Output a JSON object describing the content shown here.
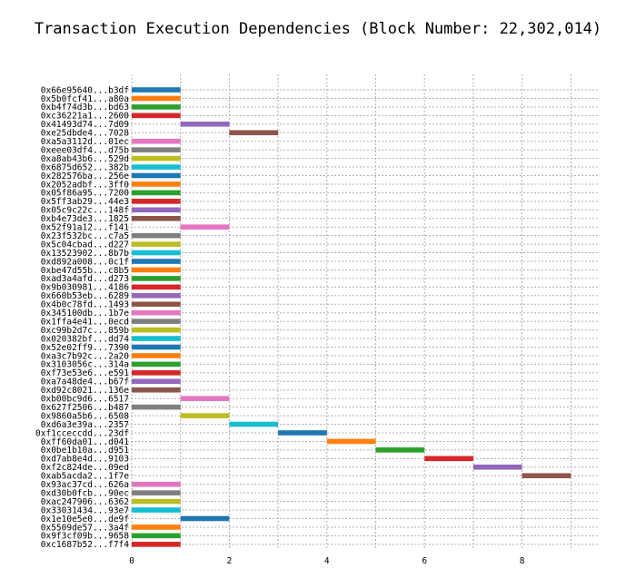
{
  "chart_data": {
    "type": "bar",
    "orientation": "horizontal",
    "title": "Transaction Execution Dependencies (Block Number: 22,302,014)",
    "xlabel": "",
    "ylabel": "",
    "xlim": [
      0,
      9.5
    ],
    "xticks": [
      0,
      2,
      4,
      6,
      8
    ],
    "grid": true,
    "transactions": [
      {
        "label": "0x66e95640...b3df",
        "start": 0,
        "end": 1,
        "color": "#1f77b4"
      },
      {
        "label": "0x5b0fcf41...a80a",
        "start": 0,
        "end": 1,
        "color": "#ff7f0e"
      },
      {
        "label": "0xb4f74d3b...bd63",
        "start": 0,
        "end": 1,
        "color": "#2ca02c"
      },
      {
        "label": "0xc36221a1...2600",
        "start": 0,
        "end": 1,
        "color": "#d62728"
      },
      {
        "label": "0x41493d74...7d09",
        "start": 1,
        "end": 2,
        "color": "#9467bd"
      },
      {
        "label": "0xe25dbde4...7028",
        "start": 2,
        "end": 3,
        "color": "#8c564b"
      },
      {
        "label": "0xa5a3112d...01ec",
        "start": 0,
        "end": 1,
        "color": "#e377c2"
      },
      {
        "label": "0xeee03df4...d75b",
        "start": 0,
        "end": 1,
        "color": "#7f7f7f"
      },
      {
        "label": "0xa8ab43b6...529d",
        "start": 0,
        "end": 1,
        "color": "#bcbd22"
      },
      {
        "label": "0x6875d652...382b",
        "start": 0,
        "end": 1,
        "color": "#17becf"
      },
      {
        "label": "0x282576ba...256e",
        "start": 0,
        "end": 1,
        "color": "#1f77b4"
      },
      {
        "label": "0x2052adbf...3ff0",
        "start": 0,
        "end": 1,
        "color": "#ff7f0e"
      },
      {
        "label": "0x05f86a95...7200",
        "start": 0,
        "end": 1,
        "color": "#2ca02c"
      },
      {
        "label": "0x5ff3ab29...44e3",
        "start": 0,
        "end": 1,
        "color": "#d62728"
      },
      {
        "label": "0x05c9c22c...148f",
        "start": 0,
        "end": 1,
        "color": "#9467bd"
      },
      {
        "label": "0xb4e73de3...1825",
        "start": 0,
        "end": 1,
        "color": "#8c564b"
      },
      {
        "label": "0x52f91a12...f141",
        "start": 1,
        "end": 2,
        "color": "#e377c2"
      },
      {
        "label": "0x23f532bc...c7a5",
        "start": 0,
        "end": 1,
        "color": "#7f7f7f"
      },
      {
        "label": "0x5c04cbad...d227",
        "start": 0,
        "end": 1,
        "color": "#bcbd22"
      },
      {
        "label": "0x13523902...8b7b",
        "start": 0,
        "end": 1,
        "color": "#17becf"
      },
      {
        "label": "0xd892a008...0c1f",
        "start": 0,
        "end": 1,
        "color": "#1f77b4"
      },
      {
        "label": "0xbe47d55b...c8b5",
        "start": 0,
        "end": 1,
        "color": "#ff7f0e"
      },
      {
        "label": "0xad3a4afd...d273",
        "start": 0,
        "end": 1,
        "color": "#2ca02c"
      },
      {
        "label": "0x9b030981...4186",
        "start": 0,
        "end": 1,
        "color": "#d62728"
      },
      {
        "label": "0x660b53eb...6289",
        "start": 0,
        "end": 1,
        "color": "#9467bd"
      },
      {
        "label": "0x4b0c78fd...1493",
        "start": 0,
        "end": 1,
        "color": "#8c564b"
      },
      {
        "label": "0x345100db...1b7e",
        "start": 0,
        "end": 1,
        "color": "#e377c2"
      },
      {
        "label": "0x1ffa4e41...0ecd",
        "start": 0,
        "end": 1,
        "color": "#7f7f7f"
      },
      {
        "label": "0xc99b2d7c...859b",
        "start": 0,
        "end": 1,
        "color": "#bcbd22"
      },
      {
        "label": "0x020382bf...dd74",
        "start": 0,
        "end": 1,
        "color": "#17becf"
      },
      {
        "label": "0x52e02ff9...7390",
        "start": 0,
        "end": 1,
        "color": "#1f77b4"
      },
      {
        "label": "0xa3c7b92c...2a20",
        "start": 0,
        "end": 1,
        "color": "#ff7f0e"
      },
      {
        "label": "0x3103056c...314a",
        "start": 0,
        "end": 1,
        "color": "#2ca02c"
      },
      {
        "label": "0xf73e53e6...e591",
        "start": 0,
        "end": 1,
        "color": "#d62728"
      },
      {
        "label": "0xa7a48de4...b67f",
        "start": 0,
        "end": 1,
        "color": "#9467bd"
      },
      {
        "label": "0xd92c8021...136e",
        "start": 0,
        "end": 1,
        "color": "#8c564b"
      },
      {
        "label": "0xb00bc9d6...6517",
        "start": 1,
        "end": 2,
        "color": "#e377c2"
      },
      {
        "label": "0x627f2506...b487",
        "start": 0,
        "end": 1,
        "color": "#7f7f7f"
      },
      {
        "label": "0x9860a5b6...6508",
        "start": 1,
        "end": 2,
        "color": "#bcbd22"
      },
      {
        "label": "0xd6a3e39a...2357",
        "start": 2,
        "end": 3,
        "color": "#17becf"
      },
      {
        "label": "0xf1cceccdd...23df",
        "start": 3,
        "end": 4,
        "color": "#1f77b4"
      },
      {
        "label": "0xff60da01...d041",
        "start": 4,
        "end": 5,
        "color": "#ff7f0e"
      },
      {
        "label": "0x0be1b10a...d951",
        "start": 5,
        "end": 6,
        "color": "#2ca02c"
      },
      {
        "label": "0xd7ab8e4d...9103",
        "start": 6,
        "end": 7,
        "color": "#d62728"
      },
      {
        "label": "0xf2c824de...09ed",
        "start": 7,
        "end": 8,
        "color": "#9467bd"
      },
      {
        "label": "0xab5acda2...1f7e",
        "start": 8,
        "end": 9,
        "color": "#8c564b"
      },
      {
        "label": "0x93ac37cd...626a",
        "start": 0,
        "end": 1,
        "color": "#e377c2"
      },
      {
        "label": "0xd30b0fcb...90ec",
        "start": 0,
        "end": 1,
        "color": "#7f7f7f"
      },
      {
        "label": "0xac247906...6362",
        "start": 0,
        "end": 1,
        "color": "#bcbd22"
      },
      {
        "label": "0x33031434...93e7",
        "start": 0,
        "end": 1,
        "color": "#17becf"
      },
      {
        "label": "0x1e10e5e0...de9f",
        "start": 1,
        "end": 2,
        "color": "#1f77b4"
      },
      {
        "label": "0x5509de57...3a4f",
        "start": 0,
        "end": 1,
        "color": "#ff7f0e"
      },
      {
        "label": "0x9f3cf09b...9658",
        "start": 0,
        "end": 1,
        "color": "#2ca02c"
      },
      {
        "label": "0xc1687b52...f7f4",
        "start": 0,
        "end": 1,
        "color": "#d62728"
      }
    ]
  }
}
